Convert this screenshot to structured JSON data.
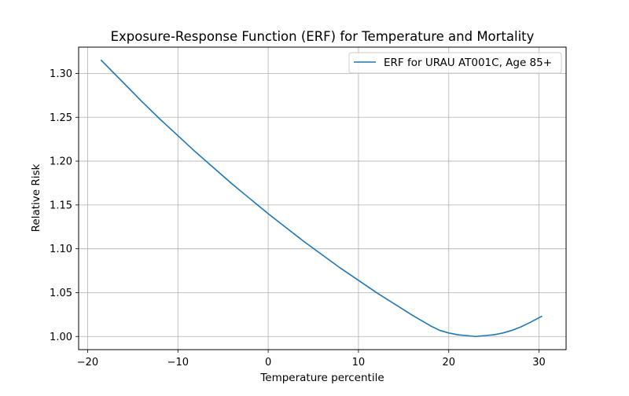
{
  "chart_data": {
    "type": "line",
    "title": "Exposure-Response Function (ERF) for Temperature and Mortality",
    "xlabel": "Temperature percentile",
    "ylabel": "Relative Risk",
    "xlim": [
      -21,
      33
    ],
    "ylim": [
      0.985,
      1.33
    ],
    "xticks": [
      -20,
      -10,
      0,
      10,
      20,
      30
    ],
    "xtick_labels": [
      "−20",
      "−10",
      "0",
      "10",
      "20",
      "30"
    ],
    "yticks": [
      1.0,
      1.05,
      1.1,
      1.15,
      1.2,
      1.25,
      1.3
    ],
    "ytick_labels": [
      "1.00",
      "1.05",
      "1.10",
      "1.15",
      "1.20",
      "1.25",
      "1.30"
    ],
    "grid": true,
    "legend_position": "top-right",
    "series": [
      {
        "name": "ERF for URAU AT001C, Age 85+",
        "color": "#1f77b4",
        "x": [
          -18.5,
          -16,
          -14,
          -12,
          -10,
          -8,
          -6,
          -4,
          -2,
          0,
          2,
          4,
          6,
          8,
          10,
          12,
          14,
          16,
          18,
          19,
          20,
          21,
          22,
          23,
          24,
          25,
          26,
          27,
          28,
          29,
          30.3
        ],
        "y": [
          1.315,
          1.289,
          1.268,
          1.248,
          1.229,
          1.21,
          1.192,
          1.174,
          1.157,
          1.14,
          1.124,
          1.108,
          1.093,
          1.078,
          1.064,
          1.05,
          1.037,
          1.024,
          1.012,
          1.007,
          1.004,
          1.002,
          1.001,
          1.0,
          1.001,
          1.002,
          1.004,
          1.007,
          1.011,
          1.016,
          1.023
        ]
      }
    ]
  }
}
